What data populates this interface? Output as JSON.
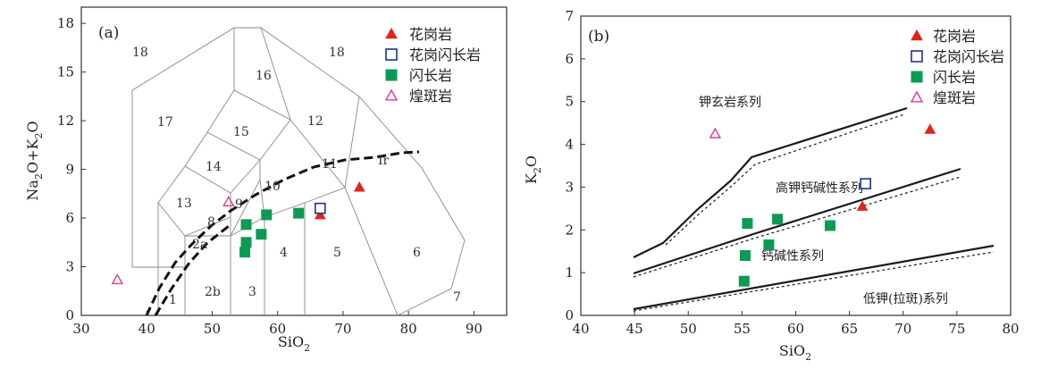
{
  "chart_data": [
    {
      "type": "scatter",
      "panel_label": "(a)",
      "xlabel": "SiO",
      "xlabel_sub": "2",
      "ylabel_parts": [
        "Na",
        "2",
        "O+K",
        "2",
        "O"
      ],
      "xlim": [
        30,
        95
      ],
      "ylim": [
        0,
        19
      ],
      "xticks": [
        30,
        40,
        50,
        60,
        70,
        80,
        90
      ],
      "yticks": [
        0,
        3,
        6,
        9,
        12,
        15,
        18
      ],
      "field_labels": [
        "18",
        "18",
        "16",
        "17",
        "15",
        "12",
        "14",
        "11",
        "Ir",
        "13",
        "10",
        "9",
        "8",
        "2a",
        "4",
        "5",
        "6",
        "1",
        "2b",
        "3",
        "7"
      ],
      "series": [
        {
          "name": "花岗岩",
          "marker": "triangle-filled",
          "color": "#e2231a",
          "x": [
            72.5,
            66.5
          ],
          "y": [
            7.9,
            6.2
          ]
        },
        {
          "name": "花岗闪长岩",
          "marker": "square-open",
          "color": "#1f2f9a",
          "x": [
            66.5
          ],
          "y": [
            6.6
          ]
        },
        {
          "name": "闪长岩",
          "marker": "square-filled",
          "color": "#0c9b52",
          "x": [
            55.2,
            55.2,
            55.0,
            57.5,
            58.3,
            63.2
          ],
          "y": [
            5.6,
            4.5,
            3.9,
            5.0,
            6.2,
            6.3
          ]
        },
        {
          "name": "煌斑岩",
          "marker": "triangle-open",
          "color": "#e23a8a",
          "x": [
            52.5,
            35.5
          ],
          "y": [
            7.0,
            2.2
          ]
        }
      ]
    },
    {
      "type": "scatter",
      "panel_label": "(b)",
      "xlabel": "SiO",
      "xlabel_sub": "2",
      "ylabel_parts": [
        "K",
        "2",
        "O"
      ],
      "xlim": [
        40,
        80
      ],
      "ylim": [
        0,
        7
      ],
      "xticks": [
        40,
        45,
        50,
        55,
        60,
        65,
        70,
        75,
        80
      ],
      "yticks": [
        0,
        1,
        2,
        3,
        4,
        5,
        6,
        7
      ],
      "series_labels": [
        "钾玄岩系列",
        "高钾钙碱性系列",
        "钙碱性系列",
        "低钾(拉斑)系列"
      ],
      "series": [
        {
          "name": "花岗岩",
          "marker": "triangle-filled",
          "color": "#e2231a",
          "x": [
            72.5,
            66.2
          ],
          "y": [
            4.35,
            2.55
          ]
        },
        {
          "name": "花岗闪长岩",
          "marker": "square-open",
          "color": "#1f2f9a",
          "x": [
            66.5
          ],
          "y": [
            3.08
          ]
        },
        {
          "name": "闪长岩",
          "marker": "square-filled",
          "color": "#0c9b52",
          "x": [
            55.5,
            58.3,
            63.2,
            57.5,
            55.3,
            55.2
          ],
          "y": [
            2.15,
            2.25,
            2.1,
            1.65,
            1.4,
            0.8
          ]
        },
        {
          "name": "煌斑岩",
          "marker": "triangle-open",
          "color": "#e23a8a",
          "x": [
            52.5
          ],
          "y": [
            4.25
          ]
        }
      ]
    }
  ]
}
